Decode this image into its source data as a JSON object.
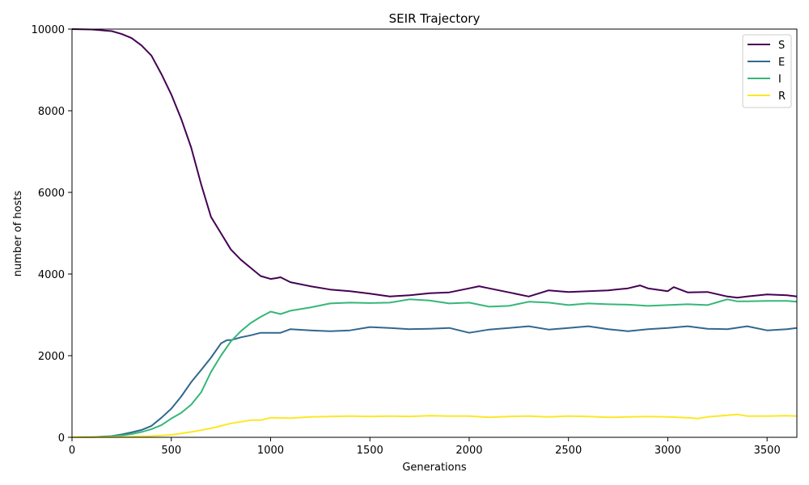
{
  "chart_data": {
    "type": "line",
    "title": "SEIR Trajectory",
    "xlabel": "Generations",
    "ylabel": "number of hosts",
    "xlim": [
      0,
      3650
    ],
    "ylim": [
      0,
      10000
    ],
    "xticks": [
      0,
      500,
      1000,
      1500,
      2000,
      2500,
      3000,
      3500
    ],
    "yticks": [
      0,
      2000,
      4000,
      6000,
      8000,
      10000
    ],
    "grid": false,
    "legend_position": "top-right",
    "series": [
      {
        "name": "S",
        "color": "#440154",
        "x": [
          0,
          100,
          200,
          250,
          300,
          350,
          400,
          450,
          500,
          550,
          600,
          650,
          700,
          750,
          800,
          850,
          900,
          950,
          1000,
          1030,
          1050,
          1100,
          1200,
          1300,
          1400,
          1500,
          1600,
          1700,
          1800,
          1900,
          2000,
          2050,
          2100,
          2200,
          2300,
          2400,
          2500,
          2600,
          2700,
          2800,
          2860,
          2900,
          3000,
          3030,
          3100,
          3200,
          3300,
          3350,
          3400,
          3500,
          3600,
          3650
        ],
        "y": [
          10000,
          9990,
          9950,
          9880,
          9780,
          9600,
          9350,
          8900,
          8400,
          7800,
          7100,
          6200,
          5400,
          5000,
          4600,
          4350,
          4150,
          3950,
          3880,
          3900,
          3920,
          3800,
          3700,
          3620,
          3580,
          3520,
          3450,
          3480,
          3530,
          3550,
          3650,
          3700,
          3650,
          3550,
          3450,
          3600,
          3560,
          3580,
          3600,
          3650,
          3720,
          3650,
          3580,
          3680,
          3550,
          3560,
          3450,
          3420,
          3450,
          3500,
          3480,
          3450
        ]
      },
      {
        "name": "E",
        "color": "#31688e",
        "x": [
          0,
          100,
          200,
          250,
          300,
          350,
          400,
          450,
          500,
          550,
          600,
          650,
          700,
          750,
          780,
          800,
          850,
          900,
          950,
          1000,
          1050,
          1100,
          1200,
          1300,
          1400,
          1500,
          1600,
          1700,
          1800,
          1900,
          2000,
          2100,
          2200,
          2300,
          2400,
          2500,
          2600,
          2700,
          2800,
          2900,
          3000,
          3100,
          3200,
          3300,
          3400,
          3500,
          3600,
          3650
        ],
        "y": [
          0,
          5,
          30,
          70,
          120,
          180,
          280,
          480,
          700,
          1000,
          1350,
          1650,
          1950,
          2300,
          2380,
          2380,
          2450,
          2500,
          2560,
          2560,
          2560,
          2650,
          2620,
          2600,
          2620,
          2700,
          2680,
          2650,
          2660,
          2680,
          2560,
          2640,
          2680,
          2720,
          2640,
          2680,
          2720,
          2650,
          2600,
          2650,
          2680,
          2720,
          2660,
          2650,
          2720,
          2620,
          2650,
          2680
        ]
      },
      {
        "name": "I",
        "color": "#35b779",
        "x": [
          0,
          100,
          200,
          250,
          300,
          350,
          400,
          450,
          500,
          550,
          600,
          650,
          700,
          750,
          800,
          850,
          900,
          950,
          1000,
          1050,
          1100,
          1200,
          1300,
          1400,
          1500,
          1600,
          1700,
          1800,
          1900,
          2000,
          2100,
          2200,
          2300,
          2400,
          2500,
          2600,
          2700,
          2800,
          2900,
          3000,
          3100,
          3200,
          3300,
          3350,
          3400,
          3500,
          3600,
          3650
        ],
        "y": [
          0,
          5,
          20,
          45,
          80,
          130,
          200,
          300,
          460,
          600,
          800,
          1100,
          1600,
          2000,
          2350,
          2600,
          2800,
          2950,
          3080,
          3020,
          3100,
          3180,
          3280,
          3300,
          3290,
          3300,
          3380,
          3350,
          3280,
          3300,
          3200,
          3220,
          3320,
          3300,
          3240,
          3280,
          3260,
          3250,
          3220,
          3240,
          3260,
          3240,
          3380,
          3330,
          3330,
          3340,
          3340,
          3320
        ]
      },
      {
        "name": "R",
        "color": "#fde725",
        "x": [
          0,
          200,
          300,
          400,
          500,
          600,
          700,
          750,
          800,
          850,
          900,
          950,
          1000,
          1100,
          1200,
          1300,
          1400,
          1500,
          1600,
          1700,
          1800,
          1900,
          2000,
          2100,
          2200,
          2300,
          2400,
          2500,
          2600,
          2700,
          2800,
          2900,
          3000,
          3100,
          3150,
          3200,
          3300,
          3350,
          3400,
          3500,
          3600,
          3650
        ],
        "y": [
          0,
          5,
          15,
          30,
          60,
          130,
          220,
          280,
          340,
          380,
          420,
          420,
          480,
          470,
          500,
          510,
          520,
          510,
          520,
          510,
          530,
          520,
          520,
          490,
          510,
          520,
          500,
          520,
          510,
          490,
          500,
          510,
          500,
          480,
          460,
          500,
          540,
          560,
          520,
          520,
          530,
          520
        ]
      }
    ]
  }
}
